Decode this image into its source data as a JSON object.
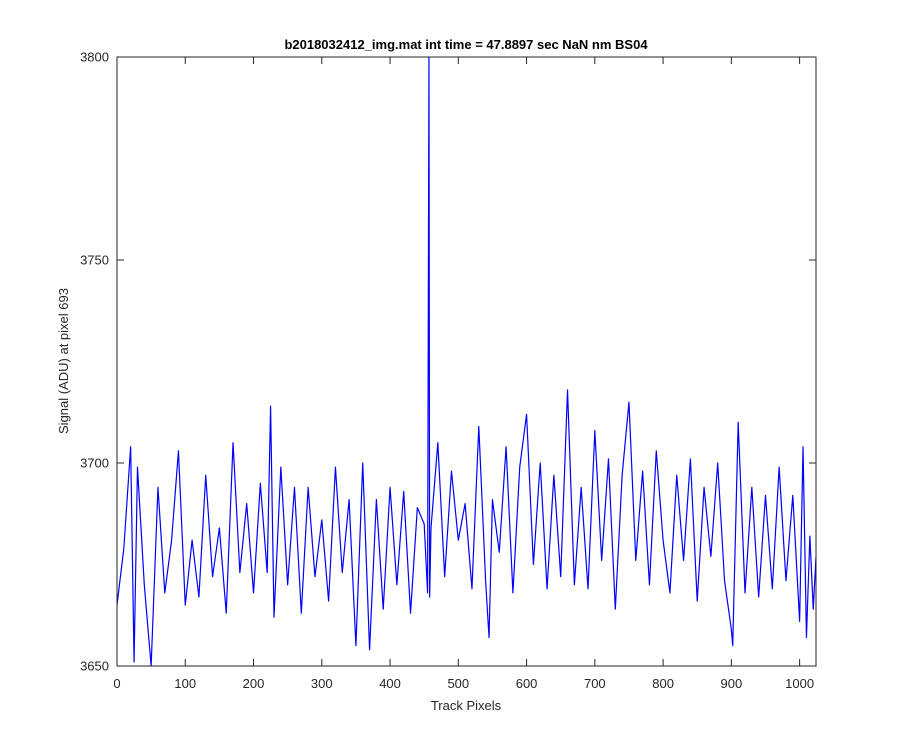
{
  "chart_data": {
    "type": "line",
    "title": "b2018032412_img.mat int time = 47.8897 sec  NaN nm BS04",
    "xlabel": "Track Pixels",
    "ylabel": "Signal (ADU) at pixel 693",
    "xlim": [
      0,
      1024
    ],
    "ylim": [
      3650,
      3800
    ],
    "xticks": [
      0,
      100,
      200,
      300,
      400,
      500,
      600,
      700,
      800,
      900,
      1000
    ],
    "yticks": [
      3650,
      3700,
      3750,
      3800
    ],
    "grid": false,
    "legend": "none",
    "series": [
      {
        "color": "#0000ff",
        "x": [
          0,
          10,
          20,
          25,
          30,
          40,
          50,
          60,
          70,
          80,
          90,
          100,
          110,
          120,
          130,
          140,
          150,
          160,
          170,
          180,
          190,
          200,
          210,
          220,
          225,
          230,
          240,
          250,
          260,
          270,
          280,
          290,
          300,
          310,
          320,
          330,
          340,
          350,
          360,
          370,
          380,
          390,
          400,
          410,
          420,
          430,
          440,
          450,
          455,
          457,
          458,
          460,
          470,
          480,
          490,
          500,
          510,
          520,
          530,
          540,
          545,
          550,
          560,
          570,
          580,
          590,
          600,
          610,
          620,
          630,
          640,
          650,
          660,
          670,
          680,
          690,
          700,
          710,
          720,
          730,
          740,
          750,
          760,
          770,
          780,
          790,
          800,
          810,
          820,
          830,
          840,
          850,
          860,
          870,
          880,
          890,
          900,
          902,
          910,
          920,
          930,
          940,
          950,
          960,
          970,
          980,
          990,
          1000,
          1005,
          1010,
          1015,
          1020,
          1024
        ],
        "y": [
          3665,
          3679,
          3704,
          3651,
          3699,
          3670,
          3650,
          3694,
          3668,
          3681,
          3703,
          3665,
          3681,
          3667,
          3697,
          3672,
          3684,
          3663,
          3705,
          3673,
          3690,
          3668,
          3695,
          3673,
          3714,
          3662,
          3699,
          3670,
          3694,
          3663,
          3694,
          3672,
          3686,
          3666,
          3699,
          3673,
          3691,
          3655,
          3700,
          3654,
          3691,
          3664,
          3694,
          3670,
          3693,
          3663,
          3689,
          3685,
          3668,
          3800,
          3667,
          3684,
          3705,
          3672,
          3698,
          3681,
          3690,
          3669,
          3709,
          3671,
          3657,
          3691,
          3678,
          3704,
          3668,
          3699,
          3712,
          3675,
          3700,
          3669,
          3697,
          3672,
          3718,
          3670,
          3694,
          3669,
          3708,
          3676,
          3701,
          3664,
          3697,
          3715,
          3676,
          3698,
          3670,
          3703,
          3681,
          3668,
          3697,
          3676,
          3701,
          3666,
          3694,
          3677,
          3700,
          3671,
          3659,
          3655,
          3710,
          3668,
          3694,
          3667,
          3692,
          3669,
          3699,
          3671,
          3692,
          3661,
          3704,
          3657,
          3682,
          3664,
          3677
        ]
      }
    ]
  }
}
